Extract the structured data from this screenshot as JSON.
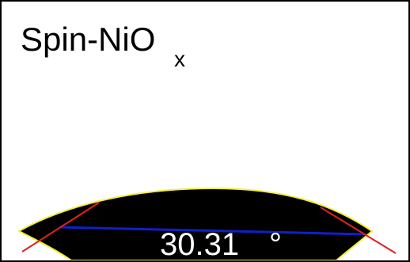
{
  "label": {
    "text": "Spin-NiO",
    "subscript": "x"
  },
  "angle": {
    "value": 30.31,
    "unit": "°"
  }
}
